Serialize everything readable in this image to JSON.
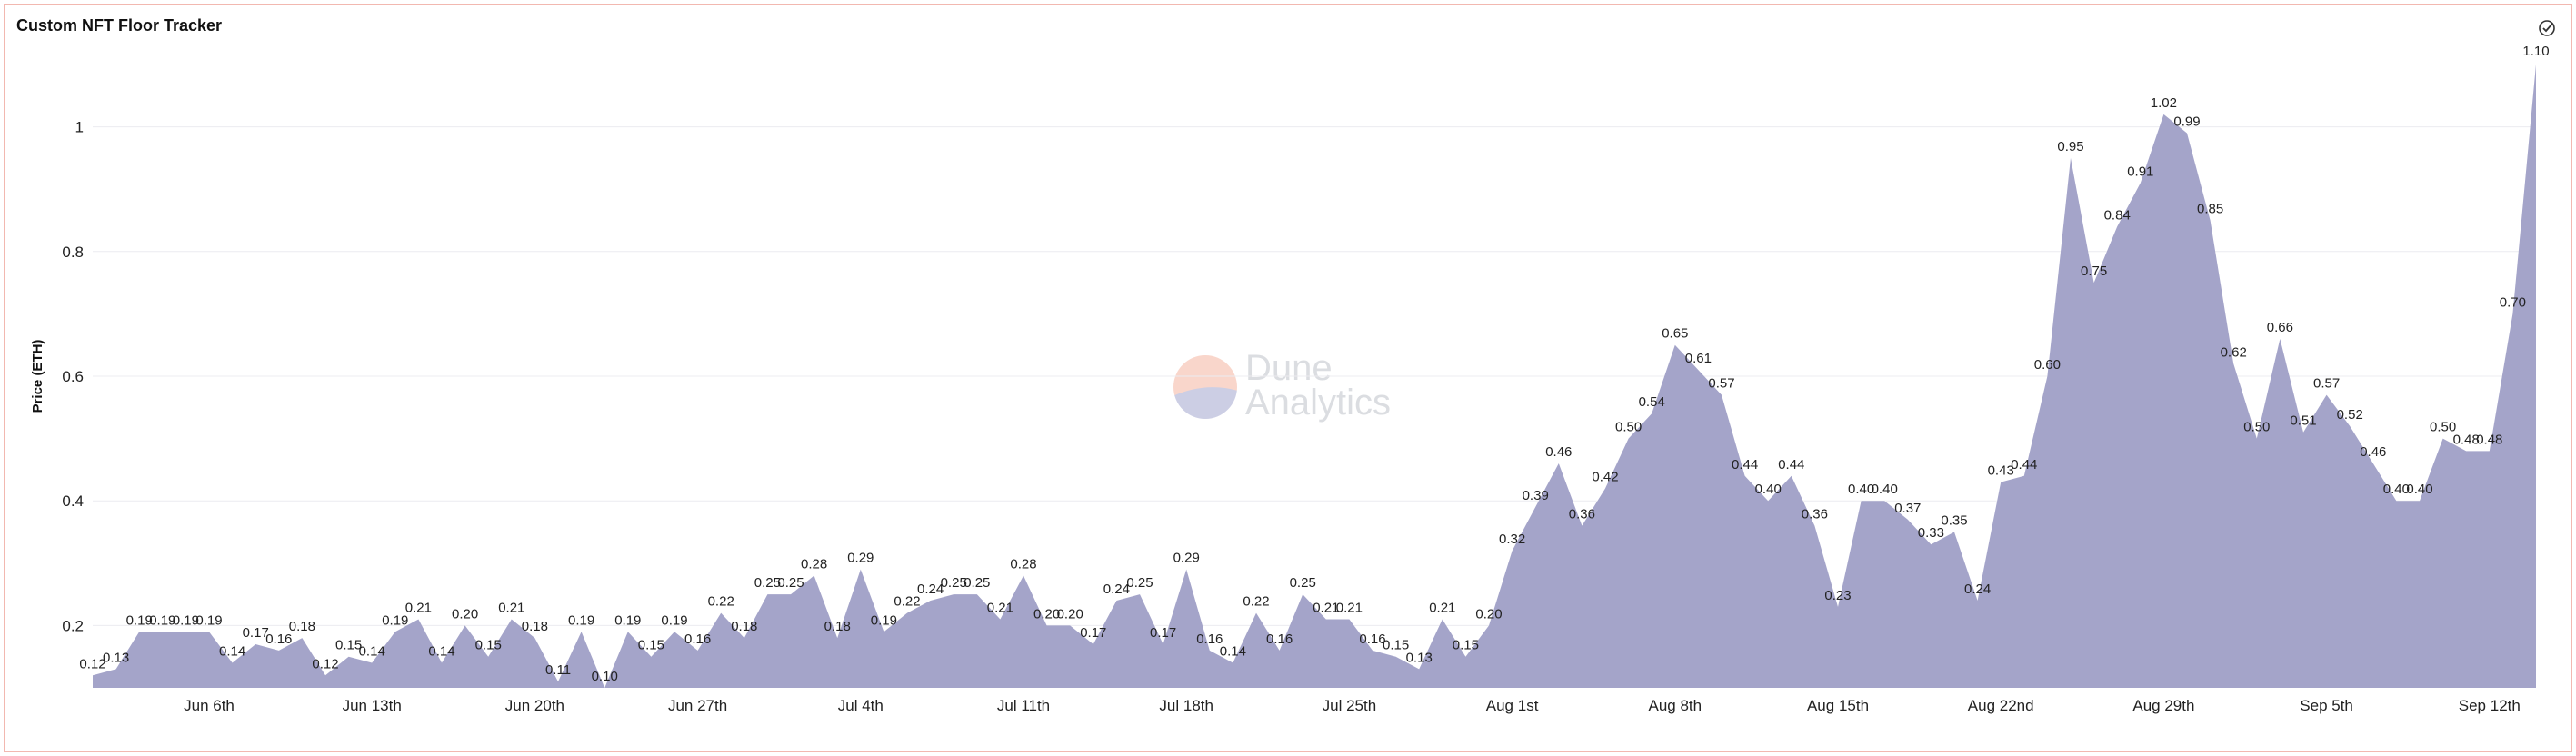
{
  "title": "Custom NFT Floor Tracker",
  "watermark": {
    "line1": "Dune",
    "line2": "Analytics"
  },
  "colors": {
    "area": "#a4a4c9",
    "grid": "#ececf0",
    "text": "#222222",
    "border": "#f2b8b0"
  },
  "icons": {
    "status": "check-circle-icon"
  },
  "chart_data": {
    "type": "area",
    "title": "Custom NFT Floor Tracker",
    "xlabel": "",
    "ylabel": "Price (ETH)",
    "ylim": [
      0.1,
      1.1
    ],
    "yticks": [
      "0.2",
      "0.4",
      "0.6",
      "0.8",
      "1"
    ],
    "ytick_values": [
      0.2,
      0.4,
      0.6,
      0.8,
      1.0
    ],
    "grid": true,
    "x_start": "2022-06-01",
    "xticks": [
      {
        "date": "2022-06-06",
        "label": "Jun 6th"
      },
      {
        "date": "2022-06-13",
        "label": "Jun 13th"
      },
      {
        "date": "2022-06-20",
        "label": "Jun 20th"
      },
      {
        "date": "2022-06-27",
        "label": "Jun 27th"
      },
      {
        "date": "2022-07-04",
        "label": "Jul 4th"
      },
      {
        "date": "2022-07-11",
        "label": "Jul 11th"
      },
      {
        "date": "2022-07-18",
        "label": "Jul 18th"
      },
      {
        "date": "2022-07-25",
        "label": "Jul 25th"
      },
      {
        "date": "2022-08-01",
        "label": "Aug 1st"
      },
      {
        "date": "2022-08-08",
        "label": "Aug 8th"
      },
      {
        "date": "2022-08-15",
        "label": "Aug 15th"
      },
      {
        "date": "2022-08-22",
        "label": "Aug 22nd"
      },
      {
        "date": "2022-08-29",
        "label": "Aug 29th"
      },
      {
        "date": "2022-09-05",
        "label": "Sep 5th"
      },
      {
        "date": "2022-09-12",
        "label": "Sep 12th"
      }
    ],
    "values": [
      0.12,
      0.13,
      0.19,
      0.19,
      0.19,
      0.19,
      0.14,
      0.17,
      0.16,
      0.18,
      0.12,
      0.15,
      0.14,
      0.19,
      0.21,
      0.14,
      0.2,
      0.15,
      0.21,
      0.18,
      0.11,
      0.19,
      0.1,
      0.19,
      0.15,
      0.19,
      0.16,
      0.22,
      0.18,
      0.25,
      0.25,
      0.28,
      0.18,
      0.29,
      0.19,
      0.22,
      0.24,
      0.25,
      0.25,
      0.21,
      0.28,
      0.2,
      0.2,
      0.17,
      0.24,
      0.25,
      0.17,
      0.29,
      0.16,
      0.14,
      0.22,
      0.16,
      0.25,
      0.21,
      0.21,
      0.16,
      0.15,
      0.13,
      0.21,
      0.15,
      0.2,
      0.32,
      0.39,
      0.46,
      0.36,
      0.42,
      0.5,
      0.54,
      0.65,
      0.61,
      0.57,
      0.44,
      0.4,
      0.44,
      0.36,
      0.23,
      0.4,
      0.4,
      0.37,
      0.33,
      0.35,
      0.24,
      0.43,
      0.44,
      0.6,
      0.95,
      0.75,
      0.84,
      0.91,
      1.02,
      0.99,
      0.85,
      0.62,
      0.5,
      0.66,
      0.51,
      0.57,
      0.52,
      0.46,
      0.4,
      0.4,
      0.5,
      0.48,
      0.48,
      0.7,
      1.1
    ],
    "value_labels": [
      "0.12",
      "0.13",
      "0.19",
      "0.19",
      "0.19",
      "0.19",
      "0.14",
      "0.17",
      "0.16",
      "0.18",
      "0.12",
      "0.15",
      "0.14",
      "0.19",
      "0.21",
      "0.14",
      "0.20",
      "0.15",
      "0.21",
      "0.18",
      "0.11",
      "0.19",
      "0.10",
      "0.19",
      "0.15",
      "0.19",
      "0.16",
      "0.22",
      "0.18",
      "0.25",
      "0.25",
      "0.28",
      "0.18",
      "0.29",
      "0.19",
      "0.22",
      "0.24",
      "0.25",
      "0.25",
      "0.21",
      "0.28",
      "0.20",
      "0.20",
      "0.17",
      "0.24",
      "0.25",
      "0.17",
      "0.29",
      "0.16",
      "0.14",
      "0.22",
      "0.16",
      "0.25",
      "0.21",
      "0.21",
      "0.16",
      "0.15",
      "0.13",
      "0.21",
      "0.15",
      "0.20",
      "0.32",
      "0.39",
      "0.46",
      "0.36",
      "0.42",
      "0.50",
      "0.54",
      "0.65",
      "0.61",
      "0.57",
      "0.44",
      "0.40",
      "0.44",
      "0.36",
      "0.23",
      "0.40",
      "0.40",
      "0.37",
      "0.33",
      "0.35",
      "0.24",
      "0.43",
      "0.44",
      "0.60",
      "0.95",
      "0.75",
      "0.84",
      "0.91",
      "1.02",
      "0.99",
      "0.85",
      "0.62",
      "0.50",
      "0.66",
      "0.51",
      "0.57",
      "0.52",
      "0.46",
      "0.40",
      "0.40",
      "0.50",
      "0.48",
      "0.48",
      "0.70",
      "1.10"
    ],
    "labeled_points": [
      0,
      1,
      2,
      3,
      4,
      5,
      6,
      7,
      8,
      9,
      10,
      11,
      12,
      13,
      14,
      15,
      16,
      17,
      18,
      19,
      20,
      21,
      22,
      23,
      24,
      25,
      26,
      27,
      28,
      29,
      30,
      31,
      32,
      33,
      34,
      35,
      36,
      37,
      38,
      39,
      40,
      41,
      42,
      43,
      44,
      45,
      46,
      47,
      48,
      49,
      50,
      51,
      52,
      53,
      54,
      55,
      56,
      57,
      58,
      59,
      60,
      61,
      62,
      63,
      64,
      65,
      66,
      67,
      68,
      69,
      70,
      71,
      72,
      73,
      74,
      75,
      76,
      77,
      78,
      79,
      80,
      81,
      82,
      83,
      84,
      85,
      86,
      87,
      88,
      89,
      90,
      91,
      92,
      93,
      94,
      95,
      96,
      97,
      98,
      99,
      100,
      101,
      102,
      103,
      104,
      105
    ]
  }
}
